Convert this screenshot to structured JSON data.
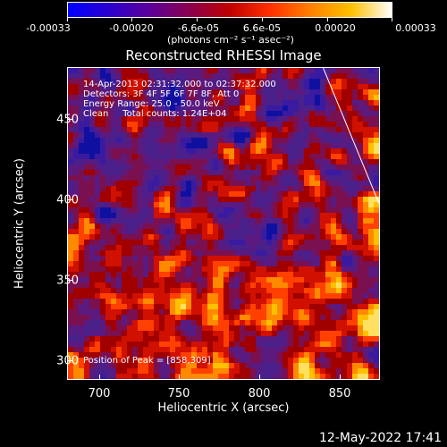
{
  "colorbar": {
    "tick_labels": [
      "-0.00033",
      "-0.00020",
      "-6.6e-05",
      "6.6e-05",
      "0.00020",
      "0.00033"
    ],
    "units": "(photons cm⁻² s⁻¹ asec⁻²)",
    "colors": [
      "#0000ff",
      "#2a00d0",
      "#5a009a",
      "#8a0050",
      "#c00000",
      "#ff3000",
      "#ff8000",
      "#ffc000",
      "#ffffff"
    ]
  },
  "title": "Reconstructed RHESSI Image",
  "info": {
    "line1": "14-Apr-2013 02:31:32.000 to 02:37:32.000",
    "line2": "Detectors: 3F 4F 5F 6F 7F 8F, Att 0",
    "line3": "Energy Range: 25.0 - 50.0 keV",
    "line4": "Clean     Total counts: 1.24E+04"
  },
  "peak_text": "Position of Peak = [858,309]",
  "axes": {
    "xlabel": "Heliocentric X (arcsec)",
    "ylabel": "Heliocentric Y (arcsec)",
    "x_ticks": [
      "700",
      "750",
      "800",
      "850"
    ],
    "y_ticks": [
      "300",
      "350",
      "400",
      "450"
    ]
  },
  "timestamp": "12-May-2022 17:41",
  "chart_data": {
    "type": "heatmap",
    "title": "Reconstructed RHESSI Image",
    "xlabel": "Heliocentric X (arcsec)",
    "ylabel": "Heliocentric Y (arcsec)",
    "xlim": [
      680,
      875
    ],
    "ylim": [
      290,
      485
    ],
    "colorbar_range": [
      -0.00033,
      0.00033
    ],
    "peak_position": [
      858,
      309
    ],
    "limb_line": [
      [
        840,
        485
      ],
      [
        875,
        400
      ]
    ]
  }
}
